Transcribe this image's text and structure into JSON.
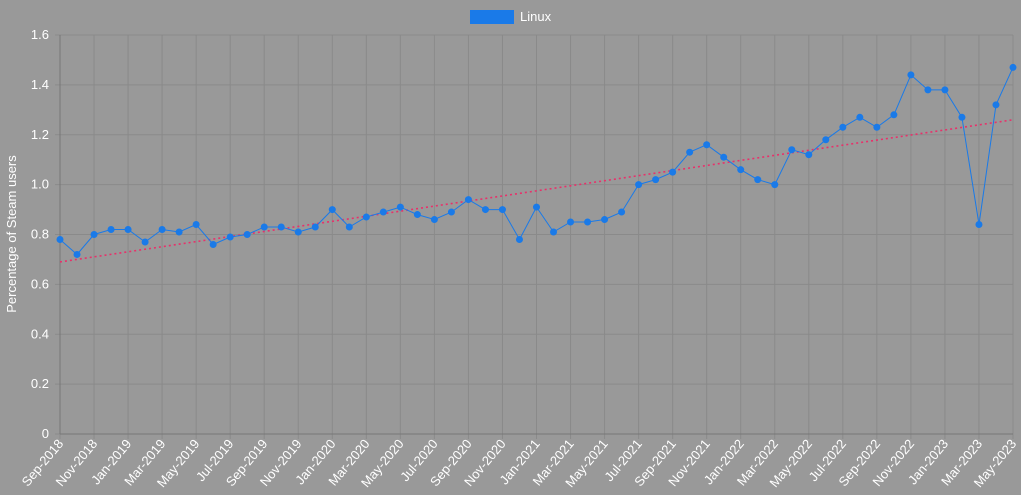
{
  "chart_data": {
    "type": "line",
    "ylabel": "Percentage of Steam users",
    "ylim": [
      0,
      1.6
    ],
    "yticks": [
      "0",
      "0.2",
      "0.4",
      "0.6",
      "0.8",
      "1.0",
      "1.2",
      "1.4",
      "1.6"
    ],
    "grid": true,
    "legend_position": "top-center",
    "x": [
      "Sep-2018",
      "Oct-2018",
      "Nov-2018",
      "Dec-2018",
      "Jan-2019",
      "Feb-2019",
      "Mar-2019",
      "Apr-2019",
      "May-2019",
      "Jun-2019",
      "Jul-2019",
      "Aug-2019",
      "Sep-2019",
      "Oct-2019",
      "Nov-2019",
      "Dec-2019",
      "Jan-2020",
      "Feb-2020",
      "Mar-2020",
      "Apr-2020",
      "May-2020",
      "Jun-2020",
      "Jul-2020",
      "Aug-2020",
      "Sep-2020",
      "Oct-2020",
      "Nov-2020",
      "Dec-2020",
      "Jan-2021",
      "Feb-2021",
      "Mar-2021",
      "Apr-2021",
      "May-2021",
      "Jun-2021",
      "Jul-2021",
      "Aug-2021",
      "Sep-2021",
      "Oct-2021",
      "Nov-2021",
      "Dec-2021",
      "Jan-2022",
      "Feb-2022",
      "Mar-2022",
      "Apr-2022",
      "May-2022",
      "Jun-2022",
      "Jul-2022",
      "Aug-2022",
      "Sep-2022",
      "Oct-2022",
      "Nov-2022",
      "Dec-2022",
      "Jan-2023",
      "Feb-2023",
      "Mar-2023",
      "Apr-2023",
      "May-2023"
    ],
    "xtick_labels": [
      "Sep-2018",
      "Nov-2018",
      "Jan-2019",
      "Mar-2019",
      "May-2019",
      "Jul-2019",
      "Sep-2019",
      "Nov-2019",
      "Jan-2020",
      "Mar-2020",
      "May-2020",
      "Jul-2020",
      "Sep-2020",
      "Nov-2020",
      "Jan-2021",
      "Mar-2021",
      "May-2021",
      "Jul-2021",
      "Sep-2021",
      "Nov-2021",
      "Jan-2022",
      "Mar-2022",
      "May-2022",
      "Jul-2022",
      "Sep-2022",
      "Nov-2022",
      "Jan-2023",
      "Mar-2023",
      "May-2023"
    ],
    "series": [
      {
        "name": "Linux",
        "color": "#1a7ae8",
        "values": [
          0.78,
          0.72,
          0.8,
          0.82,
          0.82,
          0.77,
          0.82,
          0.81,
          0.84,
          0.76,
          0.79,
          0.8,
          0.83,
          0.83,
          0.81,
          0.83,
          0.9,
          0.83,
          0.87,
          0.89,
          0.91,
          0.88,
          0.86,
          0.89,
          0.94,
          0.9,
          0.9,
          0.78,
          0.91,
          0.81,
          0.85,
          0.85,
          0.86,
          0.89,
          1.0,
          1.02,
          1.05,
          1.13,
          1.16,
          1.11,
          1.06,
          1.02,
          1.0,
          1.14,
          1.12,
          1.18,
          1.23,
          1.27,
          1.23,
          1.28,
          1.44,
          1.38,
          1.38,
          1.27,
          0.84,
          1.32,
          1.47
        ]
      }
    ],
    "trendline": {
      "style": "dotted",
      "color": "#e8306a",
      "start": 0.69,
      "end": 1.26
    }
  }
}
